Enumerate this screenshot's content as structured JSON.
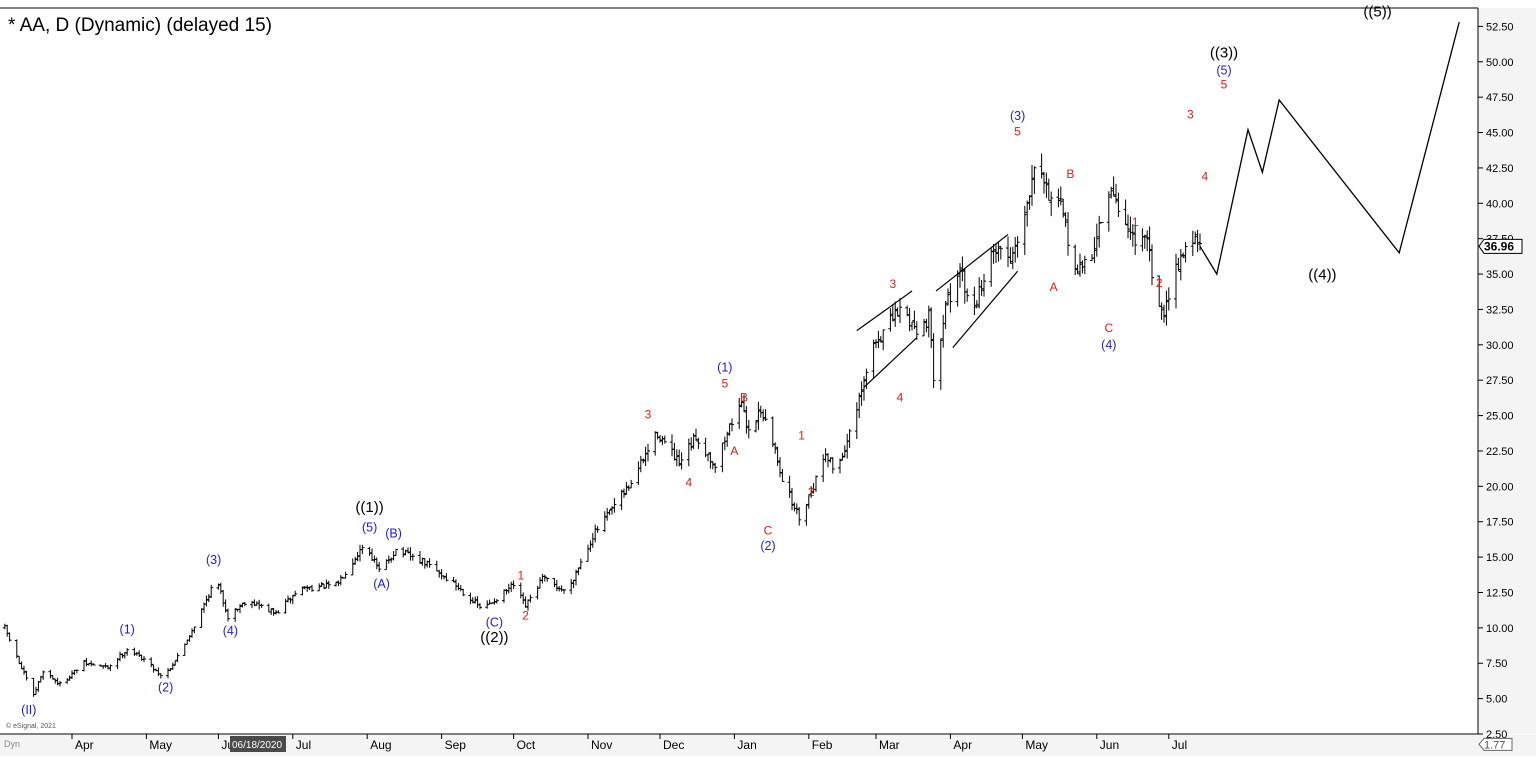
{
  "title": "* AA, D (Dynamic) (delayed 15)",
  "watermark": "© eSignal, 2021",
  "corner_label": "Dyn",
  "date_badge": "06/18/2020",
  "price_badge": {
    "value": "36.96",
    "price": 36.96
  },
  "scale_badge": {
    "value": "1.77",
    "price": 1.77
  },
  "colors": {
    "background": "#ffffff",
    "bars": "#000000",
    "wave_blue": "#1f1fd6",
    "wave_red": "#e01b1b",
    "wave_black": "#000000",
    "axis_panel": "#ececec",
    "badge_bg": "#ffffff",
    "date_badge_bg": "#4a4a4a",
    "date_badge_fg": "#ffffff"
  },
  "chart_data": {
    "type": "ohlc",
    "title": "* AA, D (Dynamic) (delayed 15)",
    "xlabel": "",
    "ylabel": "",
    "ylim": [
      2.5,
      53.8
    ],
    "yticks": [
      "2.50",
      "5.00",
      "7.50",
      "10.00",
      "12.50",
      "15.00",
      "17.50",
      "20.00",
      "22.50",
      "25.00",
      "27.50",
      "30.00",
      "32.50",
      "35.00",
      "37.50",
      "40.00",
      "42.50",
      "45.00",
      "47.50",
      "50.00",
      "52.50"
    ],
    "ytick_values": [
      2.5,
      5,
      7.5,
      10,
      12.5,
      15,
      17.5,
      20,
      22.5,
      25,
      27.5,
      30,
      32.5,
      35,
      37.5,
      40,
      42.5,
      45,
      47.5,
      50,
      52.5
    ],
    "xticks": [
      "Apr",
      "May",
      "Jun",
      "Jul",
      "Aug",
      "Sep",
      "Oct",
      "Nov",
      "Dec",
      "Jan",
      "Feb",
      "Mar",
      "Apr",
      "May",
      "Jun",
      "Jul"
    ],
    "xtick_days": [
      30,
      61,
      91,
      122,
      153,
      184,
      214,
      245,
      275,
      306,
      337,
      365,
      396,
      426,
      457,
      487
    ],
    "x_unit": "days since Mar 2020",
    "grid": false,
    "price_path": [
      [
        2,
        10.0
      ],
      [
        8,
        7.5
      ],
      [
        14,
        5.2
      ],
      [
        18,
        7.0
      ],
      [
        25,
        6.0
      ],
      [
        35,
        7.5
      ],
      [
        45,
        7.2
      ],
      [
        53,
        8.5
      ],
      [
        60,
        7.8
      ],
      [
        68,
        6.5
      ],
      [
        75,
        8.2
      ],
      [
        82,
        10.5
      ],
      [
        90,
        13.5
      ],
      [
        95,
        10.8
      ],
      [
        103,
        12.0
      ],
      [
        115,
        11.0
      ],
      [
        125,
        12.8
      ],
      [
        140,
        13.0
      ],
      [
        152,
        16.0
      ],
      [
        158,
        14.0
      ],
      [
        165,
        15.5
      ],
      [
        178,
        14.5
      ],
      [
        190,
        13.0
      ],
      [
        201,
        11.3
      ],
      [
        214,
        13.0
      ],
      [
        219,
        11.5
      ],
      [
        226,
        13.5
      ],
      [
        236,
        12.5
      ],
      [
        247,
        16.5
      ],
      [
        262,
        20.0
      ],
      [
        274,
        23.8
      ],
      [
        283,
        21.5
      ],
      [
        290,
        23.5
      ],
      [
        298,
        21.5
      ],
      [
        308,
        26.0
      ],
      [
        312,
        24.0
      ],
      [
        317,
        25.5
      ],
      [
        323,
        22.5
      ],
      [
        327,
        20.0
      ],
      [
        333,
        17.8
      ],
      [
        340,
        20.5
      ],
      [
        344,
        22.5
      ],
      [
        348,
        21.0
      ],
      [
        355,
        24.0
      ],
      [
        364,
        30.0
      ],
      [
        375,
        32.5
      ],
      [
        383,
        31.0
      ],
      [
        387,
        32.0
      ],
      [
        389,
        27.8
      ],
      [
        394,
        33.0
      ],
      [
        401,
        35.0
      ],
      [
        404,
        32.0
      ],
      [
        415,
        37.0
      ],
      [
        421,
        36.0
      ],
      [
        428,
        40.0
      ],
      [
        432,
        44.3
      ],
      [
        436,
        41.0
      ],
      [
        442,
        39.5
      ],
      [
        449,
        35.0
      ],
      [
        455,
        36.5
      ],
      [
        460,
        39.5
      ],
      [
        464,
        40.8
      ],
      [
        470,
        38.0
      ],
      [
        478,
        37.0
      ],
      [
        484,
        32.0
      ],
      [
        490,
        35.5
      ],
      [
        496,
        37.6
      ],
      [
        500,
        36.96
      ]
    ],
    "projection": [
      [
        500,
        36.96
      ],
      [
        507,
        35.0
      ],
      [
        520,
        45.2
      ],
      [
        526,
        42.2
      ],
      [
        533,
        47.3
      ],
      [
        583,
        36.5
      ],
      [
        608,
        52.8
      ]
    ],
    "trendlines": [
      {
        "from": [
          357,
          31.0
        ],
        "to": [
          380,
          33.8
        ]
      },
      {
        "from": [
          360,
          27.0
        ],
        "to": [
          382,
          30.5
        ]
      },
      {
        "from": [
          390,
          33.8
        ],
        "to": [
          420,
          37.8
        ]
      },
      {
        "from": [
          397,
          29.8
        ],
        "to": [
          424,
          35.2
        ]
      }
    ],
    "wave_labels": [
      {
        "text": "(II)",
        "day": 12,
        "price": 3.9,
        "color": "blue"
      },
      {
        "text": "(1)",
        "day": 53,
        "price": 9.6,
        "color": "blue"
      },
      {
        "text": "(2)",
        "day": 69,
        "price": 5.5,
        "color": "blue"
      },
      {
        "text": "(3)",
        "day": 89,
        "price": 14.5,
        "color": "blue"
      },
      {
        "text": "(4)",
        "day": 96,
        "price": 9.5,
        "color": "blue"
      },
      {
        "text": "((1))",
        "day": 154,
        "price": 18.2,
        "color": "black"
      },
      {
        "text": "(5)",
        "day": 154,
        "price": 16.8,
        "color": "blue"
      },
      {
        "text": "(B)",
        "day": 164,
        "price": 16.4,
        "color": "blue"
      },
      {
        "text": "(A)",
        "day": 159,
        "price": 12.8,
        "color": "blue"
      },
      {
        "text": "(C)",
        "day": 206,
        "price": 10.1,
        "color": "blue"
      },
      {
        "text": "((2))",
        "day": 206,
        "price": 9.0,
        "color": "black"
      },
      {
        "text": "1",
        "day": 217,
        "price": 13.4,
        "color": "red"
      },
      {
        "text": "2",
        "day": 219,
        "price": 10.6,
        "color": "red"
      },
      {
        "text": "3",
        "day": 270,
        "price": 24.8,
        "color": "red"
      },
      {
        "text": "4",
        "day": 287,
        "price": 20.0,
        "color": "red"
      },
      {
        "text": "(1)",
        "day": 302,
        "price": 28.1,
        "color": "blue"
      },
      {
        "text": "5",
        "day": 302,
        "price": 27.0,
        "color": "red"
      },
      {
        "text": "B",
        "day": 310,
        "price": 26.0,
        "color": "red"
      },
      {
        "text": "A",
        "day": 306,
        "price": 22.2,
        "color": "red"
      },
      {
        "text": "C",
        "day": 320,
        "price": 16.6,
        "color": "red"
      },
      {
        "text": "(2)",
        "day": 320,
        "price": 15.5,
        "color": "blue"
      },
      {
        "text": "1",
        "day": 334,
        "price": 23.3,
        "color": "red"
      },
      {
        "text": "2",
        "day": 338,
        "price": 19.3,
        "color": "red"
      },
      {
        "text": "3",
        "day": 372,
        "price": 34.0,
        "color": "red"
      },
      {
        "text": "4",
        "day": 375,
        "price": 26.0,
        "color": "red"
      },
      {
        "text": "(3)",
        "day": 424,
        "price": 45.9,
        "color": "blue"
      },
      {
        "text": "5",
        "day": 424,
        "price": 44.8,
        "color": "red"
      },
      {
        "text": "A",
        "day": 439,
        "price": 33.8,
        "color": "red"
      },
      {
        "text": "B",
        "day": 446,
        "price": 41.8,
        "color": "red"
      },
      {
        "text": "C",
        "day": 462,
        "price": 30.9,
        "color": "red"
      },
      {
        "text": "(4)",
        "day": 462,
        "price": 29.7,
        "color": "blue"
      },
      {
        "text": "1",
        "day": 473,
        "price": 38.4,
        "color": "red"
      },
      {
        "text": "2",
        "day": 483,
        "price": 34.1,
        "color": "red"
      },
      {
        "text": "3",
        "day": 496,
        "price": 46.0,
        "color": "red"
      },
      {
        "text": "4",
        "day": 502,
        "price": 41.6,
        "color": "red"
      },
      {
        "text": "((3))",
        "day": 510,
        "price": 50.3,
        "color": "black"
      },
      {
        "text": "(5)",
        "day": 510,
        "price": 49.1,
        "color": "blue"
      },
      {
        "text": "5",
        "day": 510,
        "price": 48.1,
        "color": "red"
      },
      {
        "text": "((4))",
        "day": 551,
        "price": 34.6,
        "color": "black"
      },
      {
        "text": "((5))",
        "day": 574,
        "price": 53.2,
        "color": "black"
      }
    ]
  }
}
